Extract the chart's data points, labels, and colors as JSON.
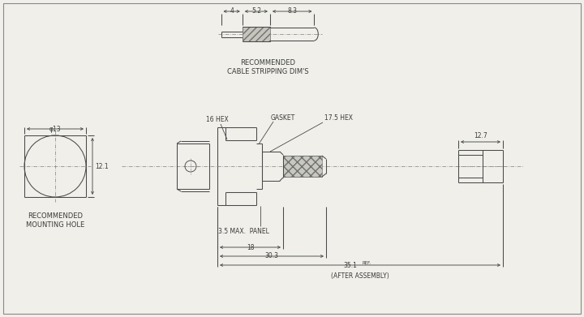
{
  "bg_color": "#f0efea",
  "line_color": "#4a4a4a",
  "text_color": "#3a3a3a",
  "dash_color": "#888888",
  "font_size": 6.0,
  "lw": 0.75,
  "annotations": {
    "gasket": "GASKET",
    "hex16": "16 HEX",
    "hex175": "17.5 HEX",
    "panel": "3.5 MAX.  PANEL",
    "dim18": "18",
    "dim30": "30.3",
    "dim35": "35.1",
    "ref": "REF.",
    "after_assembly": "(AFTER ASSEMBLY)",
    "dim12_7": "12.7",
    "dia13": "φ13",
    "dim12_1": "12.1",
    "dim4": "4",
    "dim52": "5.2",
    "dim83": "8.3",
    "cable_label": "RECOMMENDED\nCABLE STRIPPING DIM'S",
    "mount_label": "RECOMMENDED\nMOUNTING HOLE"
  }
}
